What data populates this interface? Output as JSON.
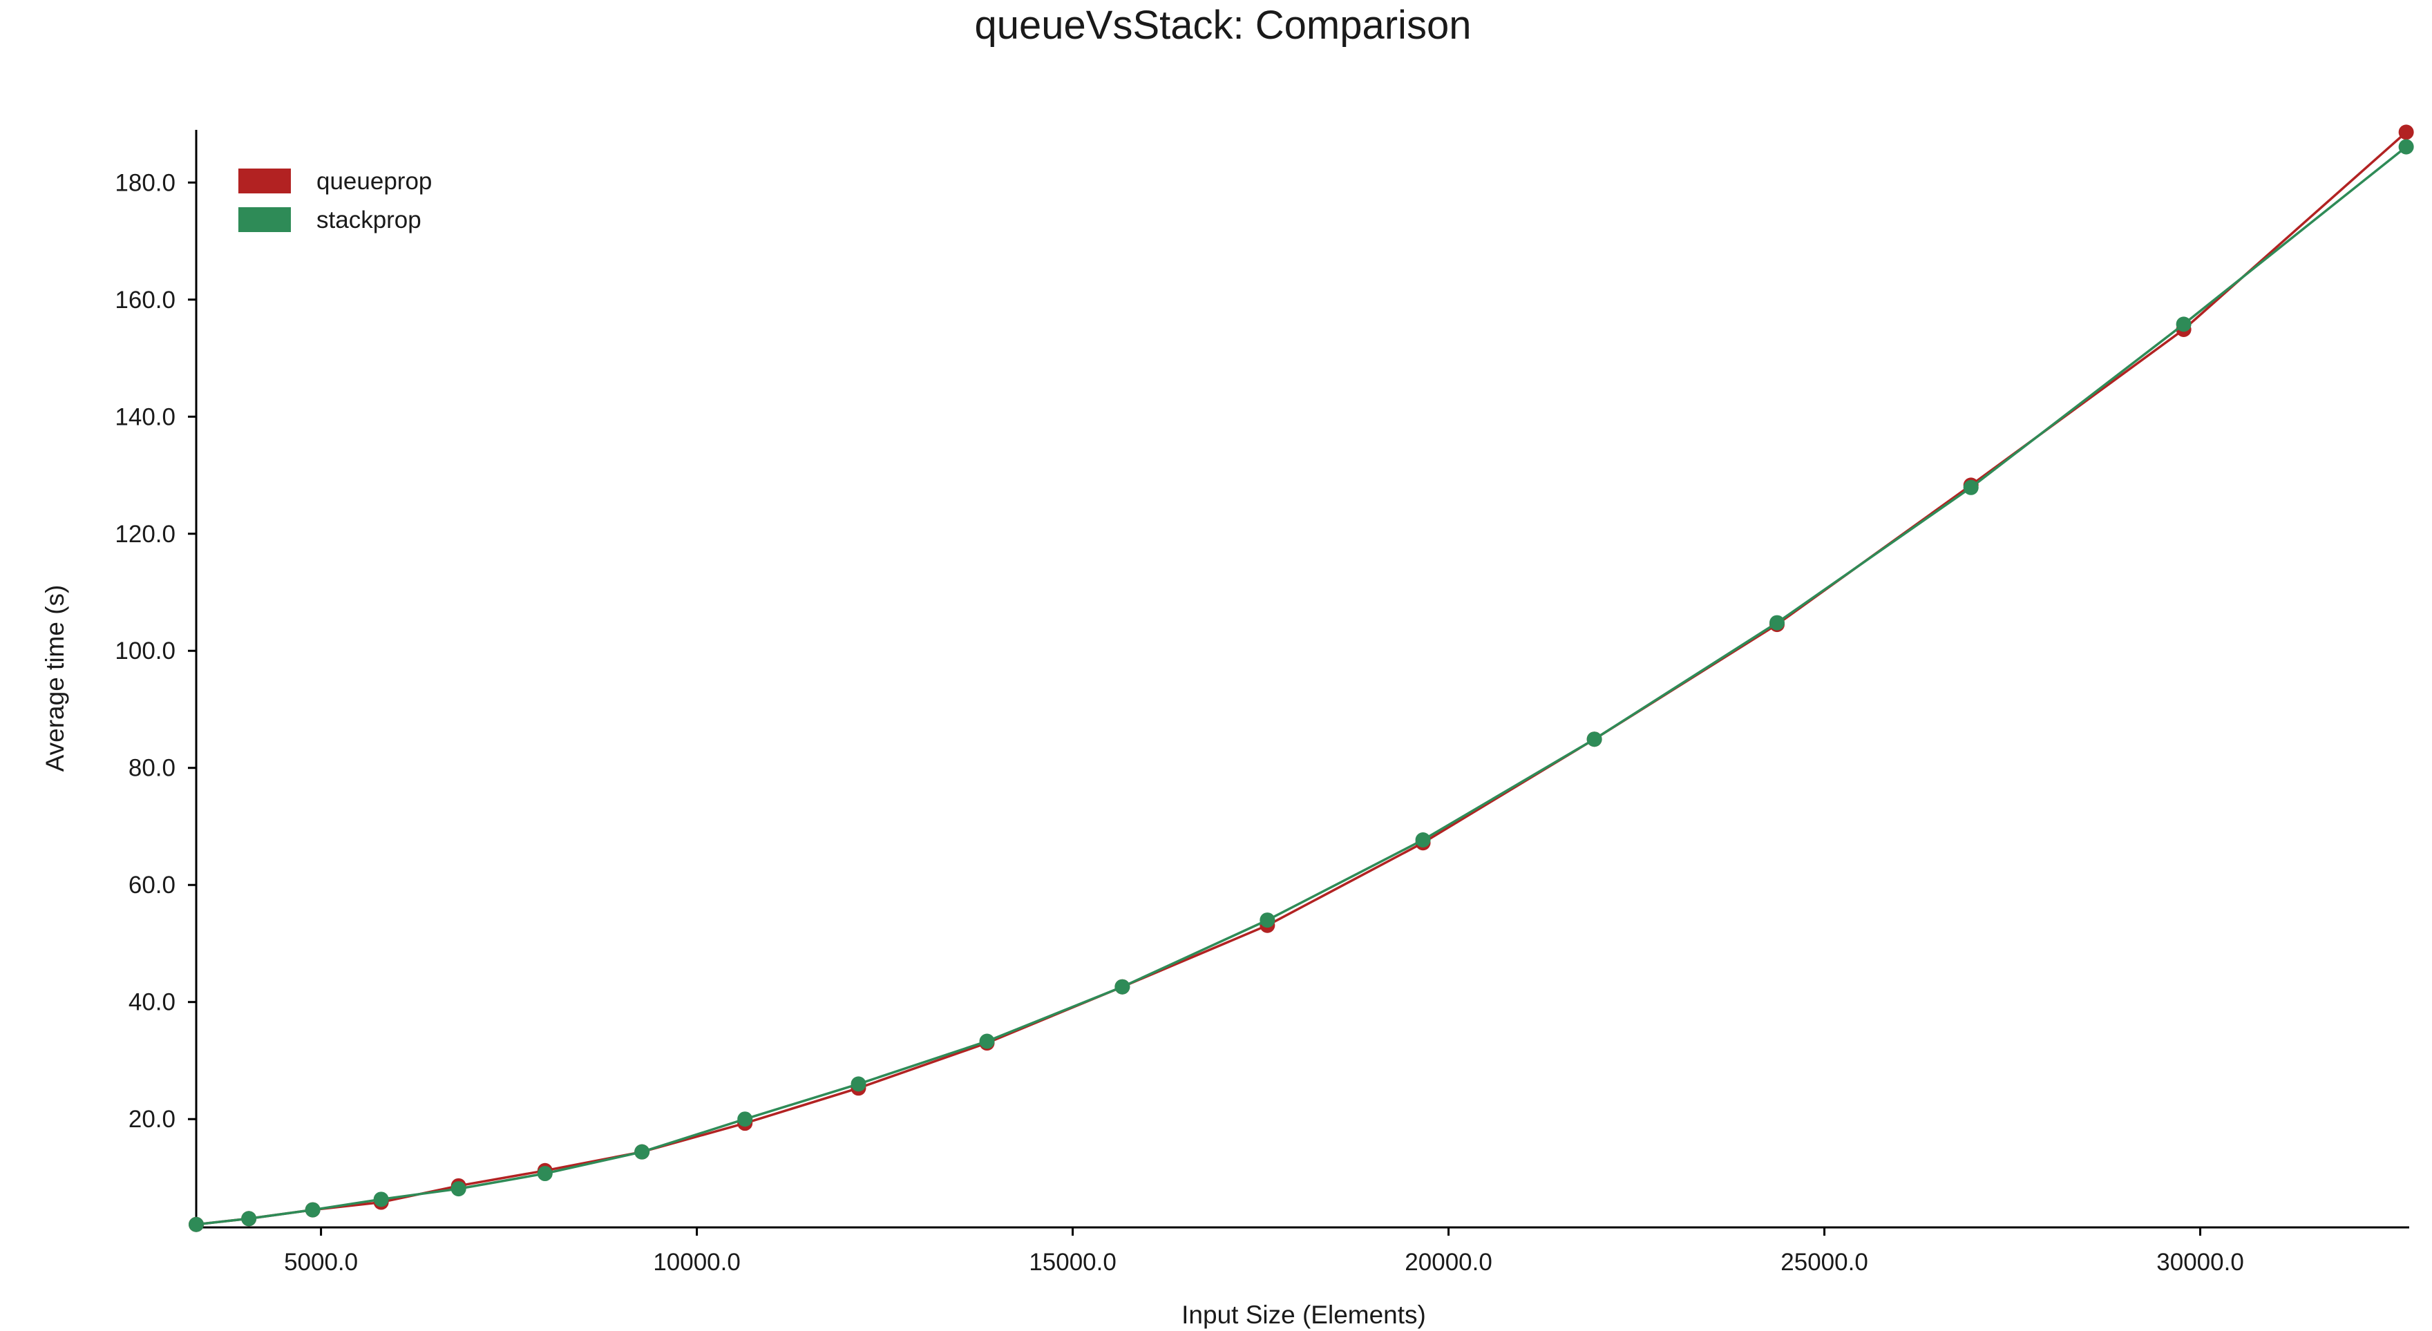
{
  "chart_data": {
    "type": "line",
    "title": "queueVsStack: Comparison",
    "xlabel": "Input Size (Elements)",
    "ylabel": "Average time (s)",
    "xlim": [
      3340,
      32780
    ],
    "ylim": [
      1.5,
      189
    ],
    "x_ticks": [
      5000,
      10000,
      15000,
      20000,
      25000,
      30000
    ],
    "x_tick_labels": [
      "5000.0",
      "10000.0",
      "15000.0",
      "20000.0",
      "25000.0",
      "30000.0"
    ],
    "y_ticks": [
      20,
      40,
      60,
      80,
      100,
      120,
      140,
      160,
      180
    ],
    "y_tick_labels": [
      "20.0",
      "40.0",
      "60.0",
      "80.0",
      "100.0",
      "120.0",
      "140.0",
      "160.0",
      "180.0"
    ],
    "grid": false,
    "legend_position": "top-left",
    "markers": true,
    "series": [
      {
        "name": "queueprop",
        "color": "#b22222",
        "x": [
          3340,
          4040,
          4890,
          5800,
          6830,
          7980,
          9270,
          10640,
          12150,
          13860,
          15660,
          17590,
          19660,
          21940,
          24370,
          26950,
          29780,
          32740
        ],
        "y": [
          2.0,
          3.0,
          4.5,
          5.8,
          8.6,
          11.2,
          14.4,
          19.3,
          25.3,
          33.0,
          42.6,
          53.1,
          67.2,
          84.9,
          104.5,
          128.3,
          154.9,
          188.6
        ]
      },
      {
        "name": "stackprop",
        "color": "#2e8b57",
        "x": [
          3340,
          4040,
          4890,
          5800,
          6830,
          7980,
          9270,
          10640,
          12150,
          13860,
          15660,
          17590,
          19660,
          21940,
          24370,
          26950,
          29780,
          32740
        ],
        "y": [
          2.0,
          3.0,
          4.5,
          6.3,
          8.1,
          10.7,
          14.4,
          20.0,
          26.0,
          33.3,
          42.6,
          54.0,
          67.7,
          84.9,
          104.8,
          127.9,
          155.8,
          186.1
        ]
      }
    ]
  }
}
